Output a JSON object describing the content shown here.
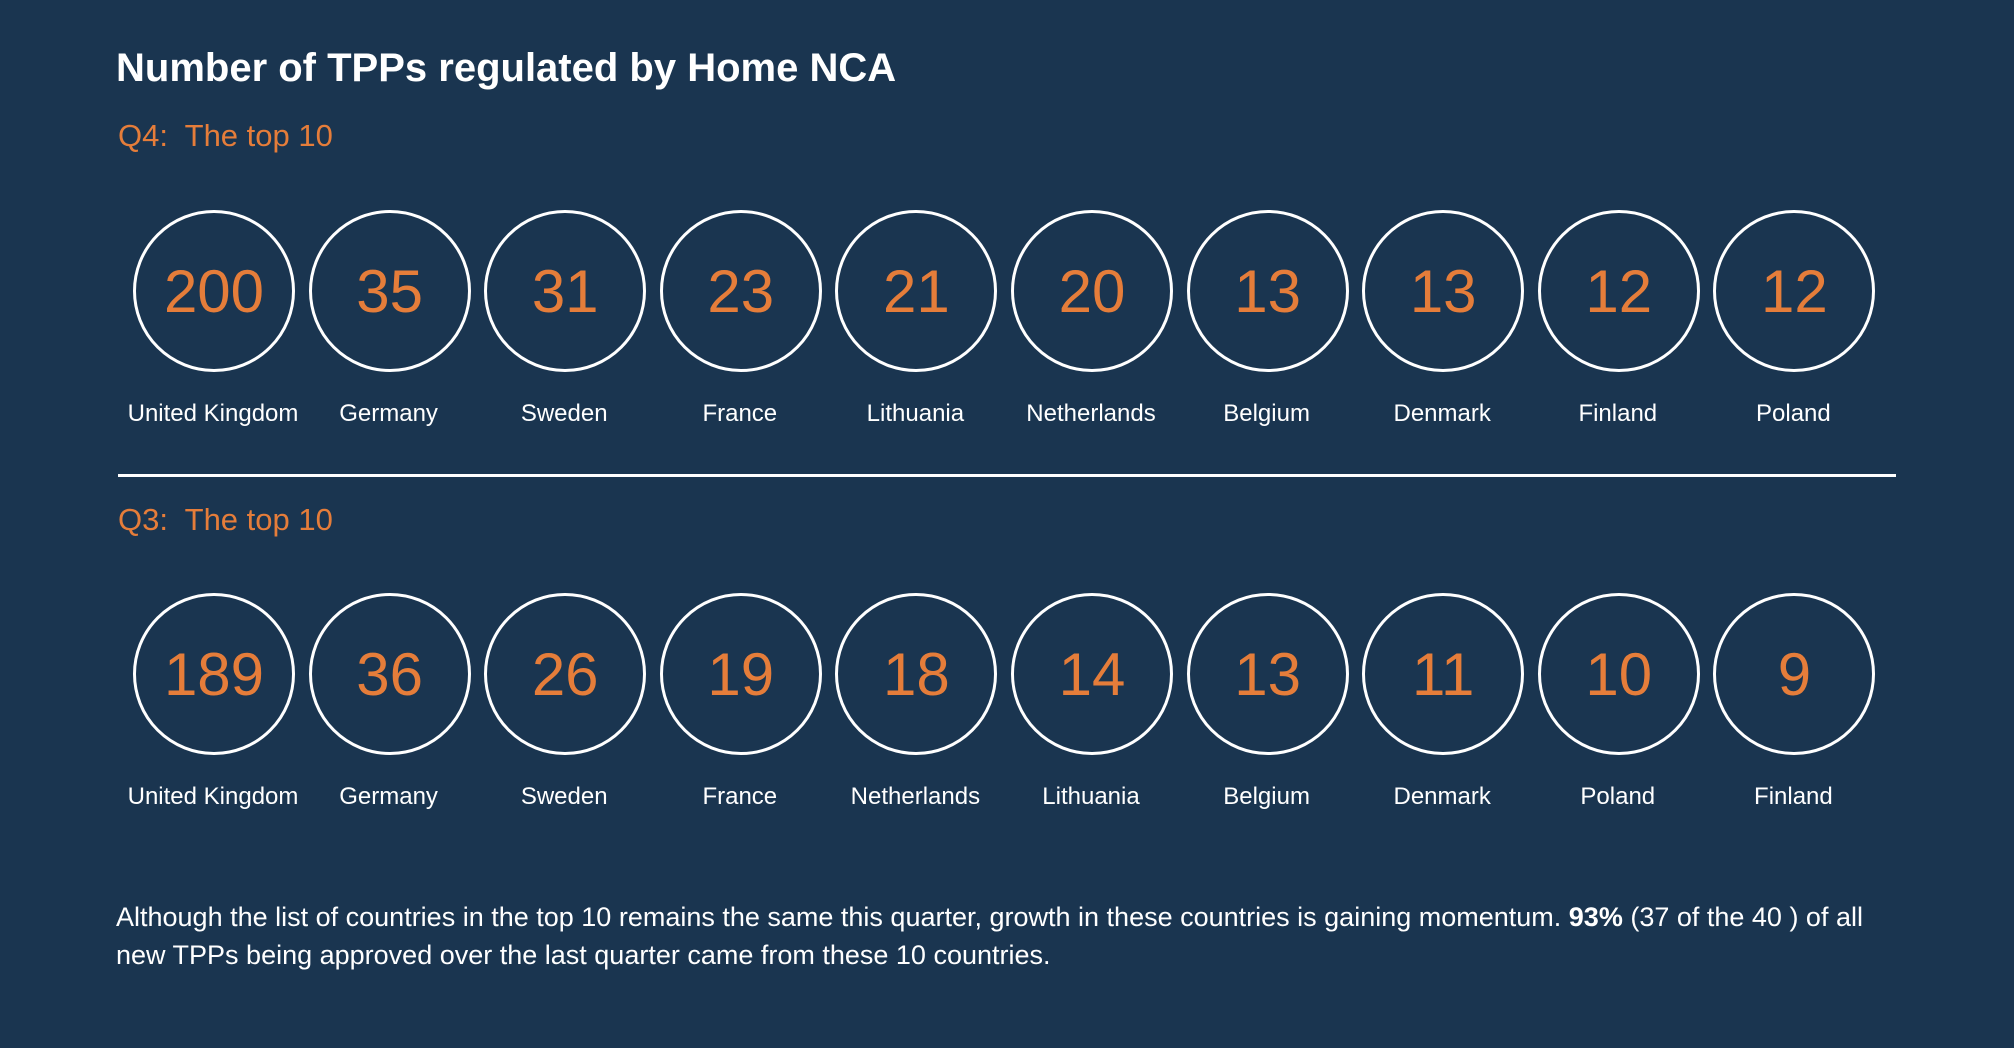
{
  "title": "Number of TPPs regulated by Home NCA",
  "colors": {
    "background": "#1a3550",
    "accent": "#e57d3a",
    "text": "#ffffff"
  },
  "chart_data": [
    {
      "type": "table",
      "subtitle": "Q4:  The top 10",
      "categories": [
        "United Kingdom",
        "Germany",
        "Sweden",
        "France",
        "Lithuania",
        "Netherlands",
        "Belgium",
        "Denmark",
        "Finland",
        "Poland"
      ],
      "values": [
        200,
        35,
        31,
        23,
        21,
        20,
        13,
        13,
        12,
        12
      ]
    },
    {
      "type": "table",
      "subtitle": "Q3:  The top 10",
      "categories": [
        "United Kingdom",
        "Germany",
        "Sweden",
        "France",
        "Netherlands",
        "Lithuania",
        "Belgium",
        "Denmark",
        "Poland",
        "Finland"
      ],
      "values": [
        189,
        36,
        26,
        19,
        18,
        14,
        13,
        11,
        10,
        9
      ]
    }
  ],
  "note": {
    "before": "Although the list of countries in the top 10 remains the same this quarter, growth in these countries is gaining momentum. ",
    "bold": "93%",
    "after": " (37 of the 40 ) of all new TPPs being approved over the last quarter came from these 10 countries."
  }
}
